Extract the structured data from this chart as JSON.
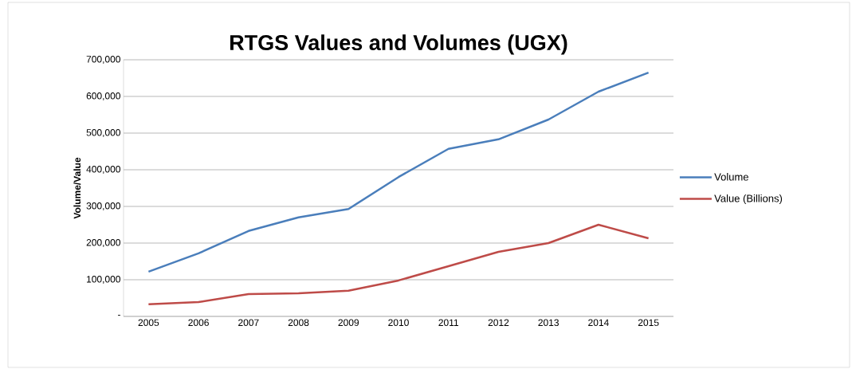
{
  "chart_data": {
    "type": "line",
    "title": "RTGS Values and Volumes (UGX)",
    "ylabel": "Volume/Value",
    "categories": [
      "2005",
      "2006",
      "2007",
      "2008",
      "2009",
      "2010",
      "2011",
      "2012",
      "2013",
      "2014",
      "2015"
    ],
    "series": [
      {
        "name": "Volume",
        "color": "#4a7ebb",
        "values": [
          122000,
          172000,
          233000,
          270000,
          293000,
          380000,
          457000,
          483000,
          537000,
          613000,
          665000
        ]
      },
      {
        "name": "Value (Billions)",
        "color": "#be4b48",
        "values": [
          33000,
          39000,
          61000,
          63000,
          70000,
          98000,
          137000,
          176000,
          200000,
          250000,
          213000
        ]
      }
    ],
    "ylim": [
      0,
      700000
    ],
    "yticks": [
      {
        "value": 0,
        "label": "-"
      },
      {
        "value": 100000,
        "label": "100,000"
      },
      {
        "value": 200000,
        "label": "200,000"
      },
      {
        "value": 300000,
        "label": "300,000"
      },
      {
        "value": 400000,
        "label": "400,000"
      },
      {
        "value": 500000,
        "label": "500,000"
      },
      {
        "value": 600000,
        "label": "600,000"
      },
      {
        "value": 700000,
        "label": "700,000"
      }
    ],
    "grid": "y",
    "legend": "right",
    "marker": "none",
    "line_style": "solid"
  }
}
